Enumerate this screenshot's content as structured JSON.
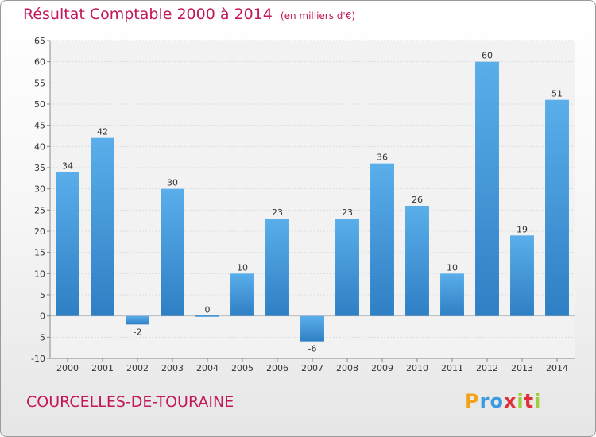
{
  "chart_data": {
    "type": "bar",
    "title": "Résultat Comptable 2000 à 2014",
    "subtitle": "(en milliers d'€)",
    "categories": [
      "2000",
      "2001",
      "2002",
      "2003",
      "2004",
      "2005",
      "2006",
      "2007",
      "2008",
      "2009",
      "2010",
      "2011",
      "2012",
      "2013",
      "2014"
    ],
    "values": [
      34,
      42,
      -2,
      30,
      0,
      10,
      23,
      -6,
      23,
      36,
      26,
      10,
      60,
      19,
      51
    ],
    "data_labels": [
      "34",
      "42",
      "-2",
      "30",
      "0",
      "10",
      "23",
      "-6",
      "23",
      "36",
      "26",
      "10",
      "60",
      "19",
      "51"
    ],
    "ylim": [
      -10,
      65
    ],
    "yticks": [
      -10,
      -5,
      0,
      5,
      10,
      15,
      20,
      25,
      30,
      35,
      40,
      45,
      50,
      55,
      60,
      65
    ],
    "grid": true,
    "bar_color": "#3d8fd1"
  },
  "footer": {
    "commune": "COURCELLES-DE-TOURAINE",
    "logo_letters": [
      "P",
      "r",
      "o",
      "x",
      "i",
      "t",
      "i"
    ],
    "logo_colors": [
      "#f2a31b",
      "#3b9be0",
      "#3b9be0",
      "#e0313a",
      "#9ecf3a",
      "#e0313a",
      "#9ecf3a"
    ]
  }
}
